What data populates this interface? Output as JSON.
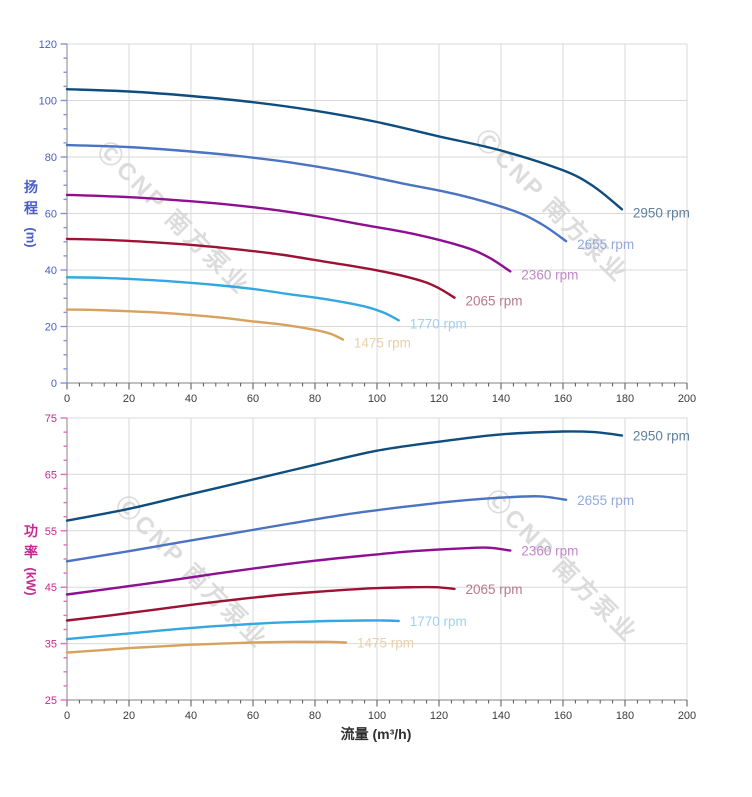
{
  "watermark": {
    "text": "ⒸCNP 南方泵业",
    "color": "#d4d4d4"
  },
  "grid_color": "#d9d9d9",
  "axis_line_color": "#9a9a9a",
  "x_tick_label_color": "#3a3a3a",
  "x_tick_mark_color": "#555555",
  "chart_data": [
    {
      "type": "line",
      "id": "head-vs-flow",
      "title": "",
      "xlabel": "",
      "ylabel": "扬程 (m)",
      "ylabel_stack": [
        "扬",
        "程"
      ],
      "ylabel_unit": "(m)",
      "xlim": [
        0,
        200
      ],
      "ylim": [
        0,
        120
      ],
      "x_ticks": [
        0,
        20,
        40,
        60,
        80,
        100,
        120,
        140,
        160,
        180,
        200
      ],
      "y_ticks": [
        0,
        20,
        40,
        60,
        80,
        100,
        120
      ],
      "x_minor_step": 4,
      "y_minor_step": 5,
      "grid": true,
      "legend_position": "line-end-labels",
      "axis_color": "#4a5ec6",
      "tick_color": "#8890dd",
      "series": [
        {
          "name": "2950 rpm",
          "color": "#0e4d7e",
          "label_color": "#5e819d",
          "points": [
            [
              0,
              104
            ],
            [
              20,
              103.2
            ],
            [
              40,
              101.6
            ],
            [
              60,
              99.4
            ],
            [
              80,
              96.4
            ],
            [
              100,
              92.4
            ],
            [
              120,
              87.3
            ],
            [
              140,
              82.3
            ],
            [
              160,
              75.3
            ],
            [
              170,
              69.5
            ],
            [
              179,
              61.5
            ]
          ]
        },
        {
          "name": "2655 rpm",
          "color": "#4a73c2",
          "label_color": "#93a9dd",
          "points": [
            [
              0,
              84.2
            ],
            [
              18,
              83.6
            ],
            [
              36,
              82.3
            ],
            [
              54,
              80.5
            ],
            [
              72,
              78.1
            ],
            [
              90,
              74.8
            ],
            [
              108,
              70.7
            ],
            [
              126,
              66.7
            ],
            [
              144,
              61
            ],
            [
              153,
              56.3
            ],
            [
              161,
              50.2
            ]
          ]
        },
        {
          "name": "2360 rpm",
          "color": "#8e0f90",
          "label_color": "#c287c9",
          "points": [
            [
              0,
              66.6
            ],
            [
              16,
              66
            ],
            [
              32,
              65
            ],
            [
              48,
              63.6
            ],
            [
              64,
              61.7
            ],
            [
              80,
              59.1
            ],
            [
              96,
              55.9
            ],
            [
              112,
              52.7
            ],
            [
              128,
              48.2
            ],
            [
              136,
              44.5
            ],
            [
              143,
              39.5
            ]
          ]
        },
        {
          "name": "2065 rpm",
          "color": "#9c1233",
          "label_color": "#b87890",
          "points": [
            [
              0,
              51
            ],
            [
              14,
              50.6
            ],
            [
              28,
              49.8
            ],
            [
              42,
              48.7
            ],
            [
              56,
              47.2
            ],
            [
              70,
              45.3
            ],
            [
              84,
              42.8
            ],
            [
              98,
              40.3
            ],
            [
              112,
              36.9
            ],
            [
              119,
              34.1
            ],
            [
              125,
              30.2
            ]
          ]
        },
        {
          "name": "1770 rpm",
          "color": "#33a7e0",
          "label_color": "#9fd2f0",
          "points": [
            [
              0,
              37.4
            ],
            [
              12,
              37.2
            ],
            [
              24,
              36.6
            ],
            [
              36,
              35.8
            ],
            [
              48,
              34.7
            ],
            [
              60,
              33.3
            ],
            [
              72,
              31.4
            ],
            [
              84,
              29.6
            ],
            [
              96,
              27.1
            ],
            [
              102,
              25
            ],
            [
              107,
              22.2
            ]
          ]
        },
        {
          "name": "1475 rpm",
          "color": "#d8a15e",
          "label_color": "#e9d0a8",
          "points": [
            [
              0,
              26
            ],
            [
              10,
              25.8
            ],
            [
              20,
              25.4
            ],
            [
              30,
              24.9
            ],
            [
              40,
              24.1
            ],
            [
              50,
              23.1
            ],
            [
              60,
              21.8
            ],
            [
              70,
              20.6
            ],
            [
              80,
              18.8
            ],
            [
              85,
              17.4
            ],
            [
              89,
              15.4
            ]
          ]
        }
      ]
    },
    {
      "type": "line",
      "id": "power-vs-flow",
      "title": "",
      "xlabel": "流量 (m³/h)",
      "ylabel": "功率 (kW)",
      "ylabel_stack": [
        "功",
        "率"
      ],
      "ylabel_unit": "(kW)",
      "xlim": [
        0,
        200
      ],
      "ylim": [
        25,
        75
      ],
      "x_ticks": [
        0,
        20,
        40,
        60,
        80,
        100,
        120,
        140,
        160,
        180,
        200
      ],
      "y_ticks": [
        25,
        35,
        45,
        55,
        65,
        75
      ],
      "x_minor_step": 4,
      "y_minor_step": 2.5,
      "grid": true,
      "legend_position": "line-end-labels",
      "axis_color": "#c42b90",
      "tick_color": "#e070bd",
      "series": [
        {
          "name": "2950 rpm",
          "color": "#0e4d7e",
          "label_color": "#5e819d",
          "points": [
            [
              0,
              56.8
            ],
            [
              20,
              58.9
            ],
            [
              40,
              61.5
            ],
            [
              60,
              64.1
            ],
            [
              80,
              66.7
            ],
            [
              100,
              69.2
            ],
            [
              120,
              70.8
            ],
            [
              140,
              72.1
            ],
            [
              160,
              72.6
            ],
            [
              170,
              72.5
            ],
            [
              179,
              71.9
            ]
          ]
        },
        {
          "name": "2655 rpm",
          "color": "#4a73c2",
          "label_color": "#93a9dd",
          "points": [
            [
              0,
              49.6
            ],
            [
              18,
              51.2
            ],
            [
              36,
              52.9
            ],
            [
              54,
              54.6
            ],
            [
              72,
              56.3
            ],
            [
              90,
              57.9
            ],
            [
              108,
              59.2
            ],
            [
              126,
              60.3
            ],
            [
              144,
              61
            ],
            [
              153,
              61.1
            ],
            [
              161,
              60.5
            ]
          ]
        },
        {
          "name": "2360 rpm",
          "color": "#8e0f90",
          "label_color": "#c287c9",
          "points": [
            [
              0,
              43.7
            ],
            [
              16,
              44.9
            ],
            [
              32,
              46.1
            ],
            [
              48,
              47.4
            ],
            [
              64,
              48.6
            ],
            [
              80,
              49.7
            ],
            [
              96,
              50.6
            ],
            [
              112,
              51.4
            ],
            [
              128,
              51.9
            ],
            [
              136,
              52
            ],
            [
              143,
              51.5
            ]
          ]
        },
        {
          "name": "2065 rpm",
          "color": "#9c1233",
          "label_color": "#b87890",
          "points": [
            [
              0,
              39.1
            ],
            [
              14,
              40
            ],
            [
              28,
              41
            ],
            [
              42,
              42
            ],
            [
              56,
              42.9
            ],
            [
              70,
              43.7
            ],
            [
              84,
              44.3
            ],
            [
              98,
              44.8
            ],
            [
              112,
              45
            ],
            [
              119,
              45
            ],
            [
              125,
              44.7
            ]
          ]
        },
        {
          "name": "1770 rpm",
          "color": "#33a7e0",
          "label_color": "#9fd2f0",
          "points": [
            [
              0,
              35.8
            ],
            [
              12,
              36.4
            ],
            [
              24,
              37
            ],
            [
              36,
              37.6
            ],
            [
              48,
              38.1
            ],
            [
              60,
              38.5
            ],
            [
              72,
              38.8
            ],
            [
              84,
              39
            ],
            [
              96,
              39.1
            ],
            [
              102,
              39.1
            ],
            [
              107,
              39
            ]
          ]
        },
        {
          "name": "1475 rpm",
          "color": "#d8a15e",
          "label_color": "#e9d0a8",
          "points": [
            [
              0,
              33.4
            ],
            [
              10,
              33.8
            ],
            [
              20,
              34.2
            ],
            [
              30,
              34.5
            ],
            [
              40,
              34.8
            ],
            [
              50,
              35
            ],
            [
              60,
              35.2
            ],
            [
              70,
              35.3
            ],
            [
              80,
              35.3
            ],
            [
              85,
              35.3
            ],
            [
              90,
              35.2
            ]
          ]
        }
      ]
    }
  ]
}
